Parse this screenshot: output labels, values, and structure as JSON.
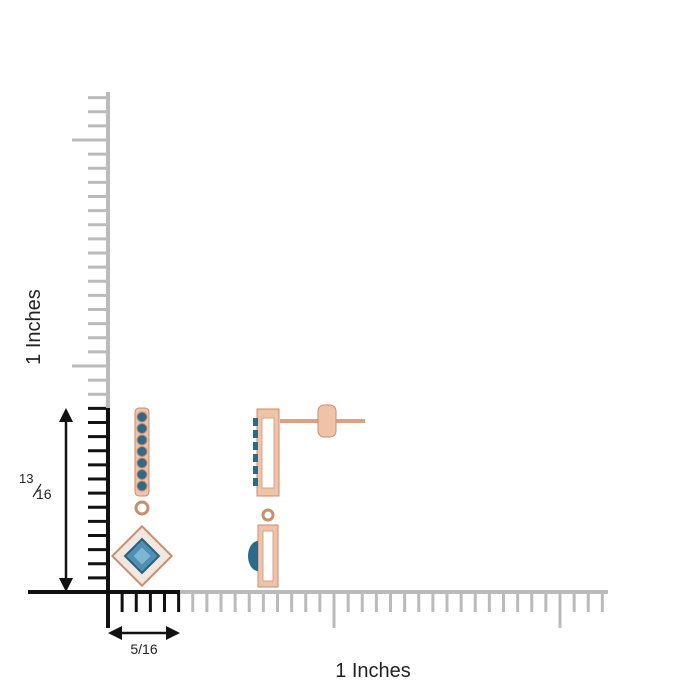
{
  "labels": {
    "height_axis": "1 Inches",
    "width_axis": "1 Inches",
    "height": {
      "numerator": "13",
      "denominator": "16"
    },
    "width": "5/16"
  }
}
